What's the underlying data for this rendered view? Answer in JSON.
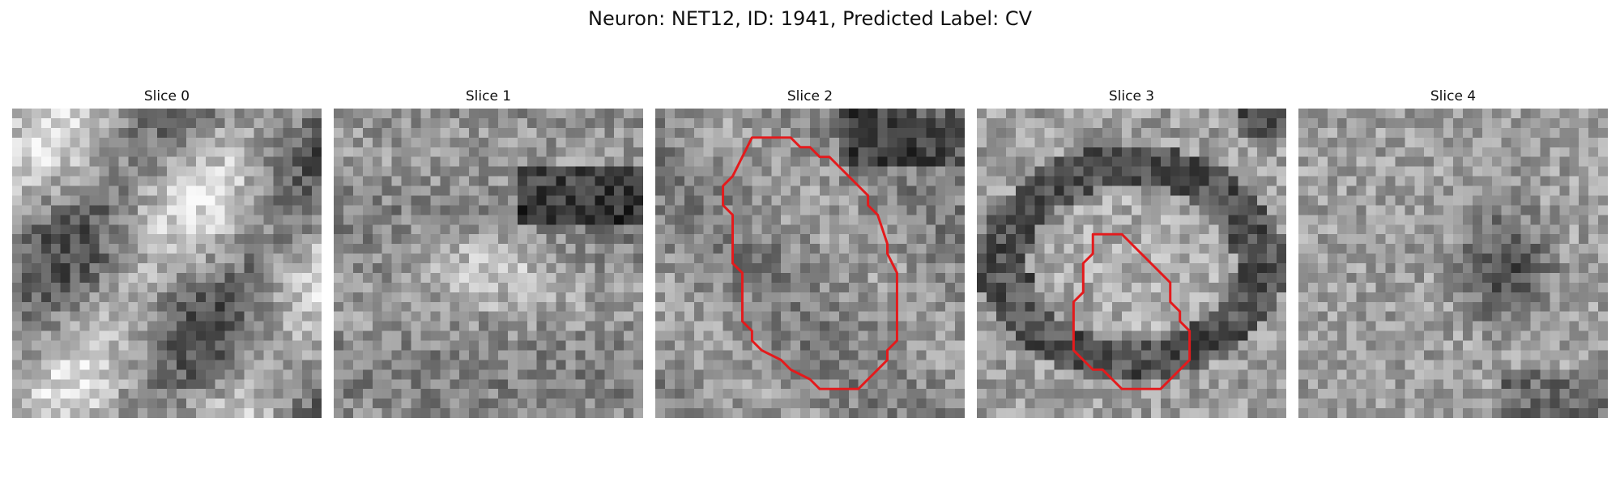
{
  "figure": {
    "title": "Neuron: NET12, ID: 1941, Predicted Label: CV"
  },
  "panels": [
    {
      "title": "Slice 0",
      "has_contour": false,
      "seed": 11,
      "dark_feature": "diagonal-bands"
    },
    {
      "title": "Slice 1",
      "has_contour": false,
      "seed": 23,
      "dark_feature": "bright-ellipse"
    },
    {
      "title": "Slice 2",
      "has_contour": true,
      "seed": 37,
      "dark_feature": "mid-texture"
    },
    {
      "title": "Slice 3",
      "has_contour": true,
      "seed": 41,
      "dark_feature": "dark-ring"
    },
    {
      "title": "Slice 4",
      "has_contour": false,
      "seed": 53,
      "dark_feature": "dark-blob"
    }
  ],
  "style": {
    "contour_color": "#e41a1c"
  }
}
